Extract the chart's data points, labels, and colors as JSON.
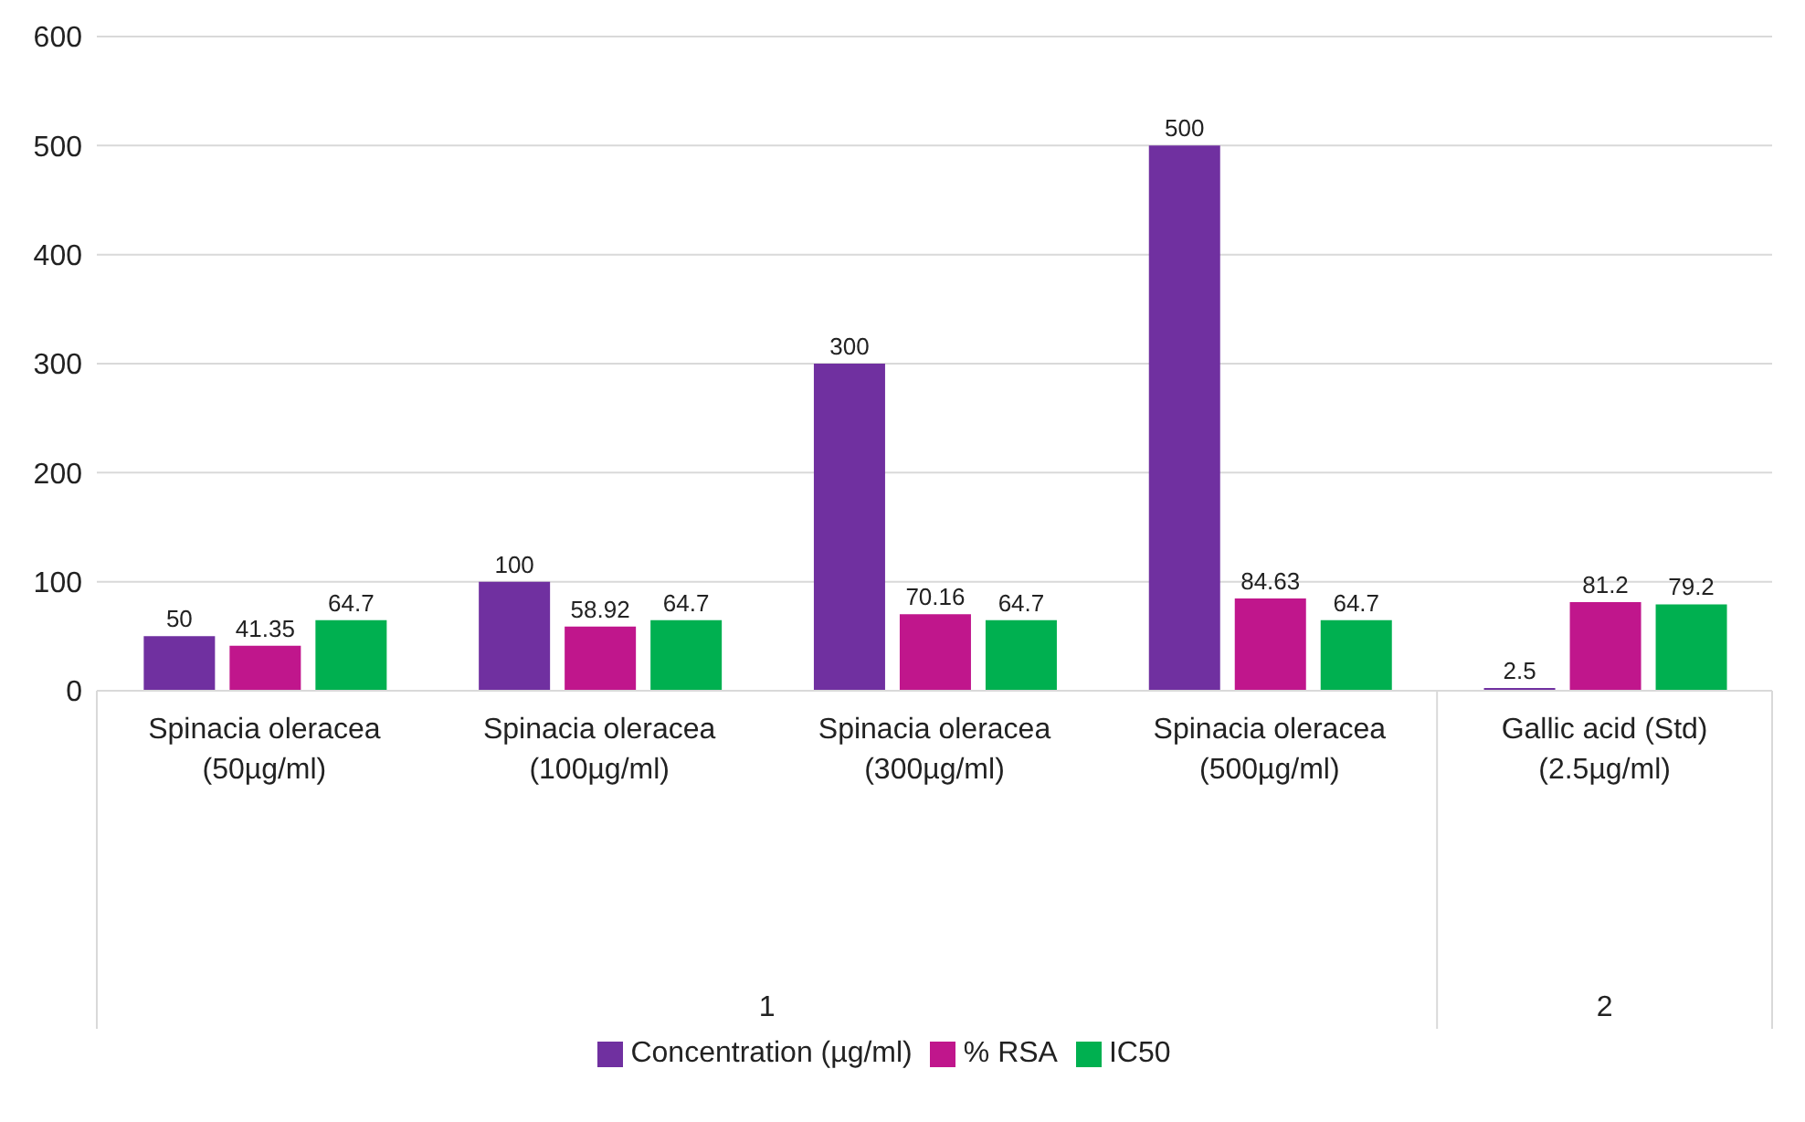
{
  "chart_data": {
    "type": "bar",
    "categories": [
      "Spinacia oleracea (50µg/ml)",
      "Spinacia oleracea (100µg/ml)",
      "Spinacia oleracea (300µg/ml)",
      "Spinacia oleracea (500µg/ml)",
      "Gallic acid (Std) (2.5µg/ml)"
    ],
    "series": [
      {
        "name": "Concentration (µg/ml)",
        "color": "#7030a0",
        "values": [
          50,
          100,
          300,
          500,
          2.5
        ]
      },
      {
        "name": "% RSA",
        "color": "#c0168c",
        "values": [
          41.35,
          58.92,
          70.16,
          84.63,
          81.2
        ]
      },
      {
        "name": "IC50",
        "color": "#00b050",
        "values": [
          64.7,
          64.7,
          64.7,
          64.7,
          79.2
        ]
      }
    ],
    "ylim": [
      0,
      600
    ],
    "yticks": [
      0,
      100,
      200,
      300,
      400,
      500,
      600
    ],
    "grid": "y",
    "legend": "bottom",
    "data_labels": true,
    "annotations": [
      "1",
      "2"
    ]
  }
}
